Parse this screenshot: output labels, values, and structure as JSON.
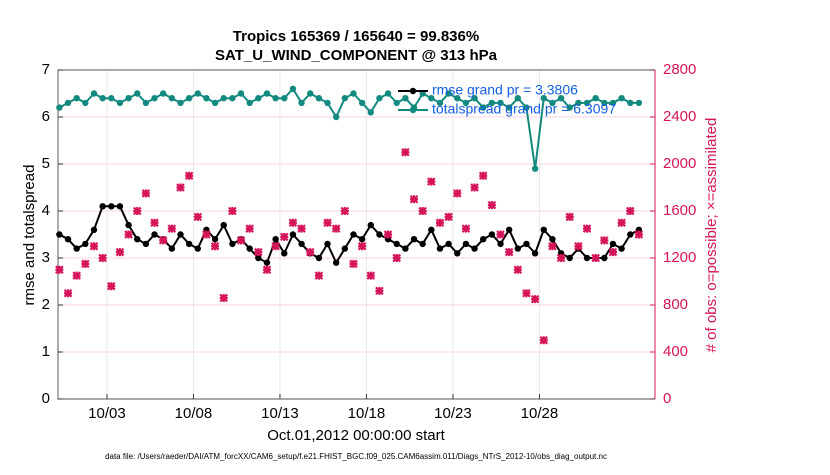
{
  "chart_data": {
    "type": "line",
    "title": "Tropics 165369 / 165640 = 99.836%",
    "subtitle": "SAT_U_WIND_COMPONENT @ 313 hPa",
    "xlabel": "Oct.01,2012 00:00:00 start",
    "ylabel": "rmse and totalspread",
    "y2label": "# of obs: o=possible; ×=assimilated",
    "footnote": "data file: /Users/raeder/DAI/ATM_forcXX/CAM6_setup/f.e21.FHIST_BGC.f09_025.CAM6assim.011/Diags_NTrS_2012-10/obs_diag_output.nc",
    "xlim": [
      -0.83,
      33.68
    ],
    "xticks": [
      {
        "value": 2,
        "label": "10/03"
      },
      {
        "value": 7,
        "label": "10/08"
      },
      {
        "value": 12,
        "label": "10/13"
      },
      {
        "value": 17,
        "label": "10/18"
      },
      {
        "value": 22,
        "label": "10/23"
      },
      {
        "value": 27,
        "label": "10/28"
      }
    ],
    "ylim": [
      0,
      7
    ],
    "yticks": [
      0,
      1,
      2,
      3,
      4,
      5,
      6,
      7
    ],
    "y2lim": [
      0,
      2800
    ],
    "y2ticks": [
      0,
      400,
      800,
      1200,
      1600,
      2000,
      2400,
      2800
    ],
    "y2color": "#d6145a",
    "grid": true,
    "x": [
      -0.75,
      -0.25,
      0.25,
      0.75,
      1.25,
      1.75,
      2.25,
      2.75,
      3.25,
      3.75,
      4.25,
      4.75,
      5.25,
      5.75,
      6.25,
      6.75,
      7.25,
      7.75,
      8.25,
      8.75,
      9.25,
      9.75,
      10.25,
      10.75,
      11.25,
      11.75,
      12.25,
      12.75,
      13.25,
      13.75,
      14.25,
      14.75,
      15.25,
      15.75,
      16.25,
      16.75,
      17.25,
      17.75,
      18.25,
      18.75,
      19.25,
      19.75,
      20.25,
      20.75,
      21.25,
      21.75,
      22.25,
      22.75,
      23.25,
      23.75,
      24.25,
      24.75,
      25.25,
      25.75,
      26.25,
      26.75,
      27.25,
      27.75,
      28.25,
      28.75,
      29.25,
      29.75,
      30.25,
      30.75,
      31.25,
      31.75,
      32.25,
      32.75
    ],
    "series": [
      {
        "name": "rmse grand pr = 3.3806",
        "color": "#000000",
        "marker": "circle",
        "values": [
          3.5,
          3.4,
          3.2,
          3.3,
          3.6,
          4.1,
          4.1,
          4.1,
          3.7,
          3.4,
          3.3,
          3.5,
          3.4,
          3.2,
          3.5,
          3.3,
          3.2,
          3.6,
          3.4,
          3.7,
          3.3,
          3.4,
          3.2,
          3.0,
          2.9,
          3.4,
          3.1,
          3.5,
          3.3,
          3.1,
          3.0,
          3.3,
          2.9,
          3.2,
          3.5,
          3.4,
          3.7,
          3.5,
          3.4,
          3.3,
          3.2,
          3.4,
          3.3,
          3.6,
          3.2,
          3.3,
          3.1,
          3.3,
          3.2,
          3.4,
          3.5,
          3.3,
          3.6,
          3.2,
          3.3,
          3.1,
          3.6,
          3.4,
          3.1,
          3.0,
          3.2,
          3.0,
          3.0,
          3.0,
          3.3,
          3.2,
          3.5,
          3.6
        ]
      },
      {
        "name": "totalspread grand pr = 6.3097",
        "color": "#138a7f",
        "marker": "circle",
        "values": [
          6.2,
          6.3,
          6.4,
          6.3,
          6.5,
          6.4,
          6.4,
          6.3,
          6.4,
          6.5,
          6.3,
          6.4,
          6.5,
          6.4,
          6.3,
          6.4,
          6.5,
          6.4,
          6.3,
          6.4,
          6.4,
          6.5,
          6.3,
          6.4,
          6.5,
          6.4,
          6.4,
          6.6,
          6.3,
          6.5,
          6.4,
          6.3,
          6.0,
          6.4,
          6.5,
          6.3,
          6.1,
          6.4,
          6.5,
          6.3,
          6.4,
          6.2,
          6.5,
          6.4,
          6.3,
          6.5,
          6.4,
          6.3,
          6.4,
          6.2,
          6.3,
          6.3,
          6.2,
          6.4,
          6.2,
          4.9,
          6.4,
          6.3,
          6.4,
          6.2,
          6.3,
          6.3,
          6.4,
          6.3,
          6.3,
          6.4,
          6.3,
          6.3
        ]
      },
      {
        "color": "#d6145a",
        "marker": "x",
        "axis": "y2",
        "values": [
          1100,
          900,
          1050,
          1150,
          1300,
          1200,
          960,
          1250,
          1400,
          1600,
          1750,
          1500,
          1350,
          1450,
          1800,
          1900,
          1550,
          1400,
          1300,
          860,
          1600,
          1350,
          1450,
          1250,
          1100,
          1300,
          1380,
          1500,
          1450,
          1250,
          1050,
          1500,
          1450,
          1600,
          1150,
          1300,
          1050,
          920,
          1400,
          1200,
          2100,
          1700,
          1600,
          1850,
          1500,
          1550,
          1750,
          1450,
          1800,
          1900,
          1650,
          1400,
          1250,
          1100,
          900,
          850,
          500,
          1300,
          1200,
          1550,
          1300,
          1450,
          1200,
          1350,
          1250,
          1500,
          1600,
          1400
        ]
      }
    ]
  }
}
